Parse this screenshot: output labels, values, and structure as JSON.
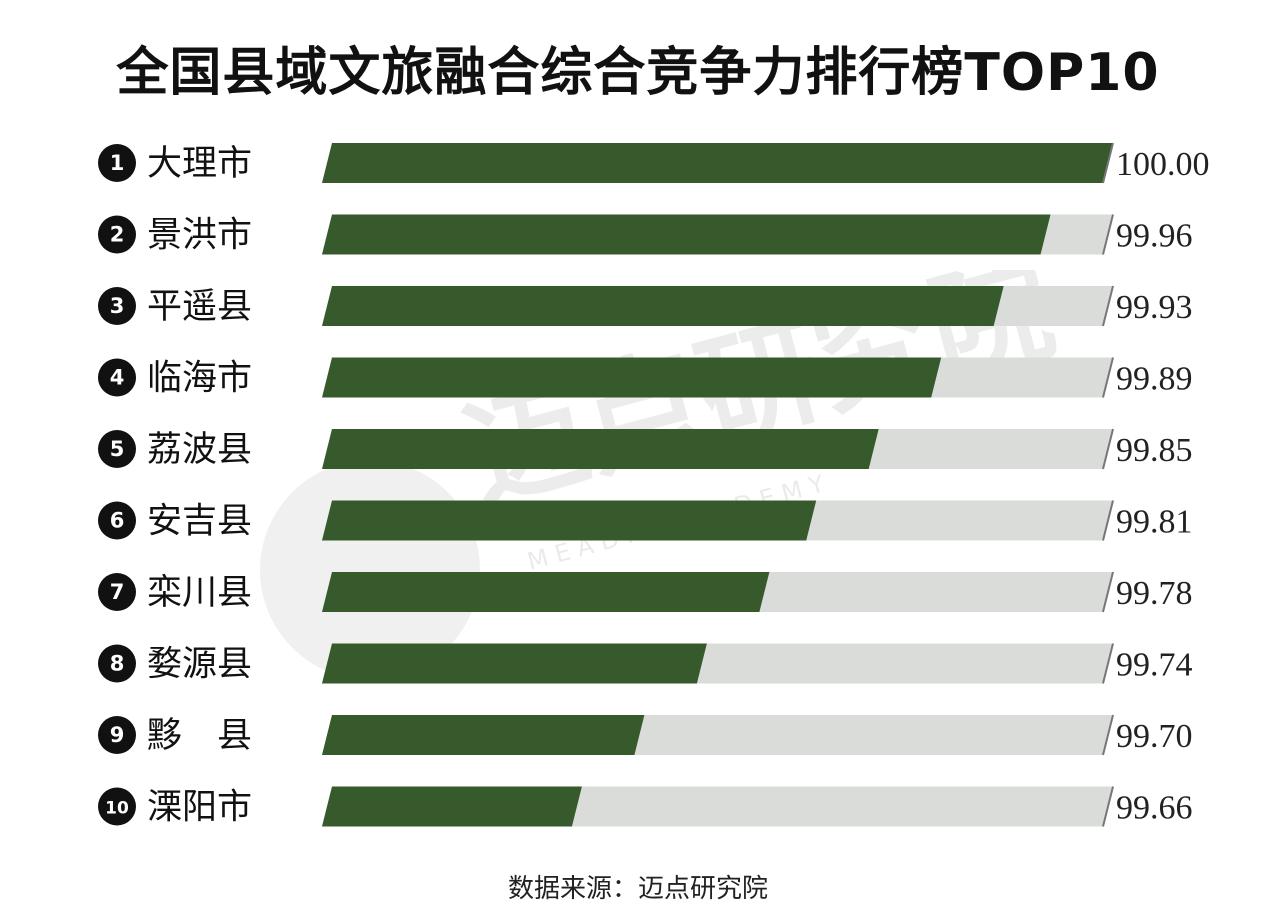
{
  "chart_data": {
    "type": "bar",
    "orientation": "horizontal",
    "title": "全国县域文旅融合综合竞争力排行榜TOP10",
    "categories": [
      "大理市",
      "景洪市",
      "平遥县",
      "临海市",
      "荔波县",
      "安吉县",
      "栾川县",
      "婺源县",
      "黟　县",
      "溧阳市"
    ],
    "ranks": [
      "1",
      "2",
      "3",
      "4",
      "5",
      "6",
      "7",
      "8",
      "9",
      "10"
    ],
    "values": [
      100.0,
      99.96,
      99.93,
      99.89,
      99.85,
      99.81,
      99.78,
      99.74,
      99.7,
      99.66
    ],
    "value_labels": [
      "100.00",
      "99.96",
      "99.93",
      "99.89",
      "99.85",
      "99.81",
      "99.78",
      "99.74",
      "99.70",
      "99.66"
    ],
    "xlim": [
      99.5,
      100.0
    ],
    "grid": false,
    "legend": "none",
    "bar_color": "#365a2b",
    "track_color": "#d9dcd9"
  },
  "watermark": {
    "text": "迈点研究院",
    "subtext": "M E A D I N   A C A D E M Y"
  },
  "footer": "数据来源：迈点研究院"
}
